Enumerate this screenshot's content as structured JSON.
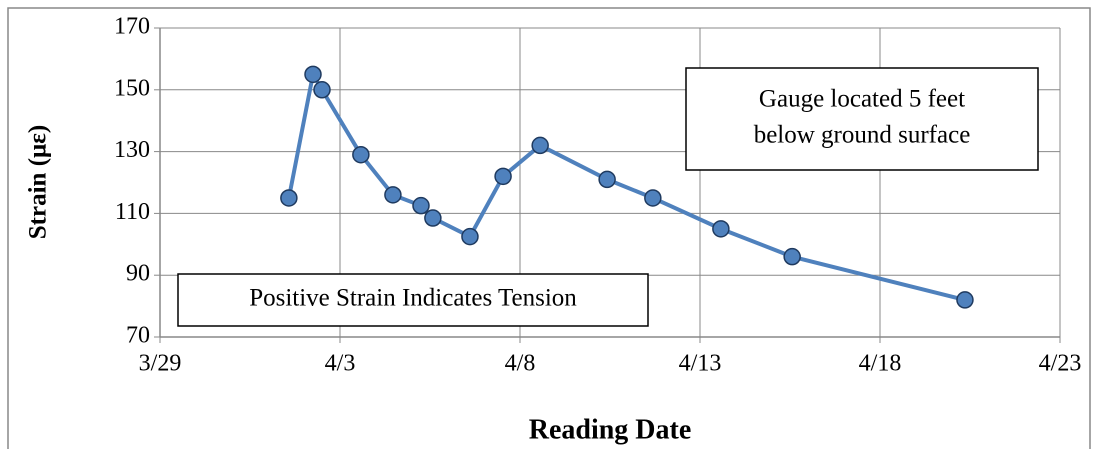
{
  "chart_data": {
    "type": "line",
    "xlabel": "Reading Date",
    "ylabel": "Strain (με)",
    "annotations": [
      [
        "Gauge located 5 feet",
        "below ground surface"
      ],
      [
        "Positive Strain Indicates Tension"
      ]
    ],
    "x": [
      91.58,
      92.25,
      92.5,
      93.58,
      94.47,
      95.25,
      95.58,
      96.61,
      97.53,
      98.56,
      100.42,
      101.69,
      103.58,
      105.56,
      110.36
    ],
    "series": [
      {
        "name": "Strain",
        "color": "#4f81bd",
        "values": [
          115,
          155,
          150,
          129,
          116,
          112.5,
          108.5,
          102.5,
          122,
          132,
          121,
          115,
          105,
          96,
          82
        ]
      }
    ],
    "xlim": [
      88,
      113
    ],
    "xticks": [
      {
        "value": 88,
        "label": "3/29"
      },
      {
        "value": 93,
        "label": "4/3"
      },
      {
        "value": 98,
        "label": "4/8"
      },
      {
        "value": 103,
        "label": "4/13"
      },
      {
        "value": 108,
        "label": "4/18"
      },
      {
        "value": 113,
        "label": "4/23"
      }
    ],
    "ylim": [
      70,
      170
    ],
    "yticks": [
      70,
      90,
      110,
      130,
      150,
      170
    ],
    "grid": true
  }
}
